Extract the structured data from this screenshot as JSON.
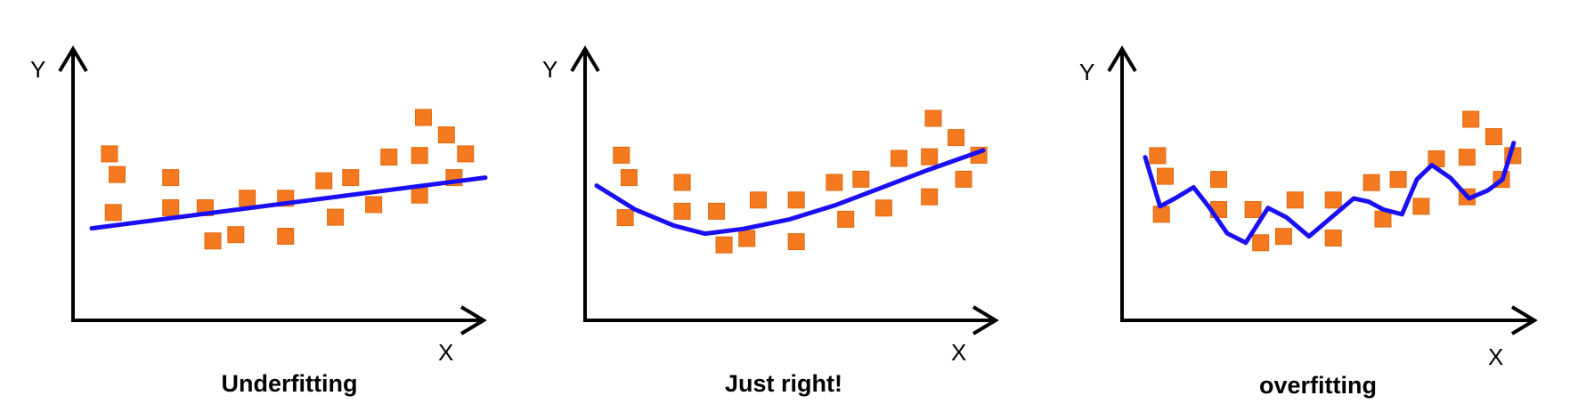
{
  "colors": {
    "point": "#f5791f",
    "point_edge": "#e06a10",
    "fit": "#1a0ff2",
    "axis": "#000000"
  },
  "panels": [
    {
      "title": "Underfitting",
      "x_axis_label": "X",
      "y_axis_label": "Y",
      "fit": "linear",
      "points": [
        [
          0.03,
          0.77
        ],
        [
          0.05,
          0.64
        ],
        [
          0.04,
          0.4
        ],
        [
          0.19,
          0.62
        ],
        [
          0.19,
          0.43
        ],
        [
          0.28,
          0.43
        ],
        [
          0.3,
          0.22
        ],
        [
          0.36,
          0.26
        ],
        [
          0.39,
          0.49
        ],
        [
          0.49,
          0.49
        ],
        [
          0.49,
          0.25
        ],
        [
          0.59,
          0.6
        ],
        [
          0.62,
          0.37
        ],
        [
          0.66,
          0.62
        ],
        [
          0.72,
          0.45
        ],
        [
          0.76,
          0.75
        ],
        [
          0.84,
          0.76
        ],
        [
          0.84,
          0.51
        ],
        [
          0.85,
          1.0
        ],
        [
          0.91,
          0.89
        ],
        [
          0.96,
          0.77
        ],
        [
          0.93,
          0.62
        ]
      ],
      "fit_points": [
        [
          0.0,
          0.3
        ],
        [
          1.0,
          0.62
        ]
      ]
    },
    {
      "title": "Just right!",
      "x_axis_label": "X",
      "y_axis_label": "Y",
      "fit": "quadratic",
      "points": [
        [
          0.03,
          0.77
        ],
        [
          0.05,
          0.63
        ],
        [
          0.04,
          0.38
        ],
        [
          0.19,
          0.6
        ],
        [
          0.19,
          0.42
        ],
        [
          0.28,
          0.42
        ],
        [
          0.3,
          0.21
        ],
        [
          0.36,
          0.25
        ],
        [
          0.39,
          0.49
        ],
        [
          0.49,
          0.49
        ],
        [
          0.49,
          0.23
        ],
        [
          0.59,
          0.6
        ],
        [
          0.62,
          0.37
        ],
        [
          0.66,
          0.62
        ],
        [
          0.72,
          0.44
        ],
        [
          0.76,
          0.75
        ],
        [
          0.84,
          0.76
        ],
        [
          0.84,
          0.51
        ],
        [
          0.85,
          1.0
        ],
        [
          0.91,
          0.88
        ],
        [
          0.97,
          0.77
        ],
        [
          0.93,
          0.62
        ]
      ],
      "fit_points": [
        [
          0.0,
          0.58
        ],
        [
          0.1,
          0.43
        ],
        [
          0.2,
          0.33
        ],
        [
          0.28,
          0.28
        ],
        [
          0.38,
          0.31
        ],
        [
          0.5,
          0.37
        ],
        [
          0.62,
          0.46
        ],
        [
          0.74,
          0.57
        ],
        [
          0.86,
          0.68
        ],
        [
          1.0,
          0.8
        ]
      ]
    },
    {
      "title": "overfitting",
      "x_axis_label": "X",
      "y_axis_label": "Y",
      "fit": "high-degree polynomial",
      "points": [
        [
          0.03,
          0.77
        ],
        [
          0.05,
          0.64
        ],
        [
          0.04,
          0.4
        ],
        [
          0.19,
          0.62
        ],
        [
          0.19,
          0.43
        ],
        [
          0.28,
          0.43
        ],
        [
          0.3,
          0.22
        ],
        [
          0.36,
          0.26
        ],
        [
          0.39,
          0.49
        ],
        [
          0.49,
          0.49
        ],
        [
          0.49,
          0.25
        ],
        [
          0.59,
          0.6
        ],
        [
          0.62,
          0.37
        ],
        [
          0.66,
          0.62
        ],
        [
          0.72,
          0.45
        ],
        [
          0.76,
          0.75
        ],
        [
          0.84,
          0.76
        ],
        [
          0.84,
          0.51
        ],
        [
          0.85,
          1.0
        ],
        [
          0.91,
          0.89
        ],
        [
          0.96,
          0.77
        ],
        [
          0.93,
          0.62
        ]
      ],
      "fit_points": [
        [
          0.0,
          0.76
        ],
        [
          0.04,
          0.45
        ],
        [
          0.08,
          0.5
        ],
        [
          0.13,
          0.57
        ],
        [
          0.17,
          0.45
        ],
        [
          0.22,
          0.28
        ],
        [
          0.27,
          0.22
        ],
        [
          0.33,
          0.44
        ],
        [
          0.38,
          0.38
        ],
        [
          0.44,
          0.26
        ],
        [
          0.5,
          0.38
        ],
        [
          0.56,
          0.5
        ],
        [
          0.6,
          0.48
        ],
        [
          0.64,
          0.43
        ],
        [
          0.69,
          0.4
        ],
        [
          0.73,
          0.62
        ],
        [
          0.77,
          0.71
        ],
        [
          0.82,
          0.63
        ],
        [
          0.87,
          0.5
        ],
        [
          0.92,
          0.55
        ],
        [
          0.96,
          0.62
        ],
        [
          0.99,
          0.85
        ]
      ]
    }
  ]
}
